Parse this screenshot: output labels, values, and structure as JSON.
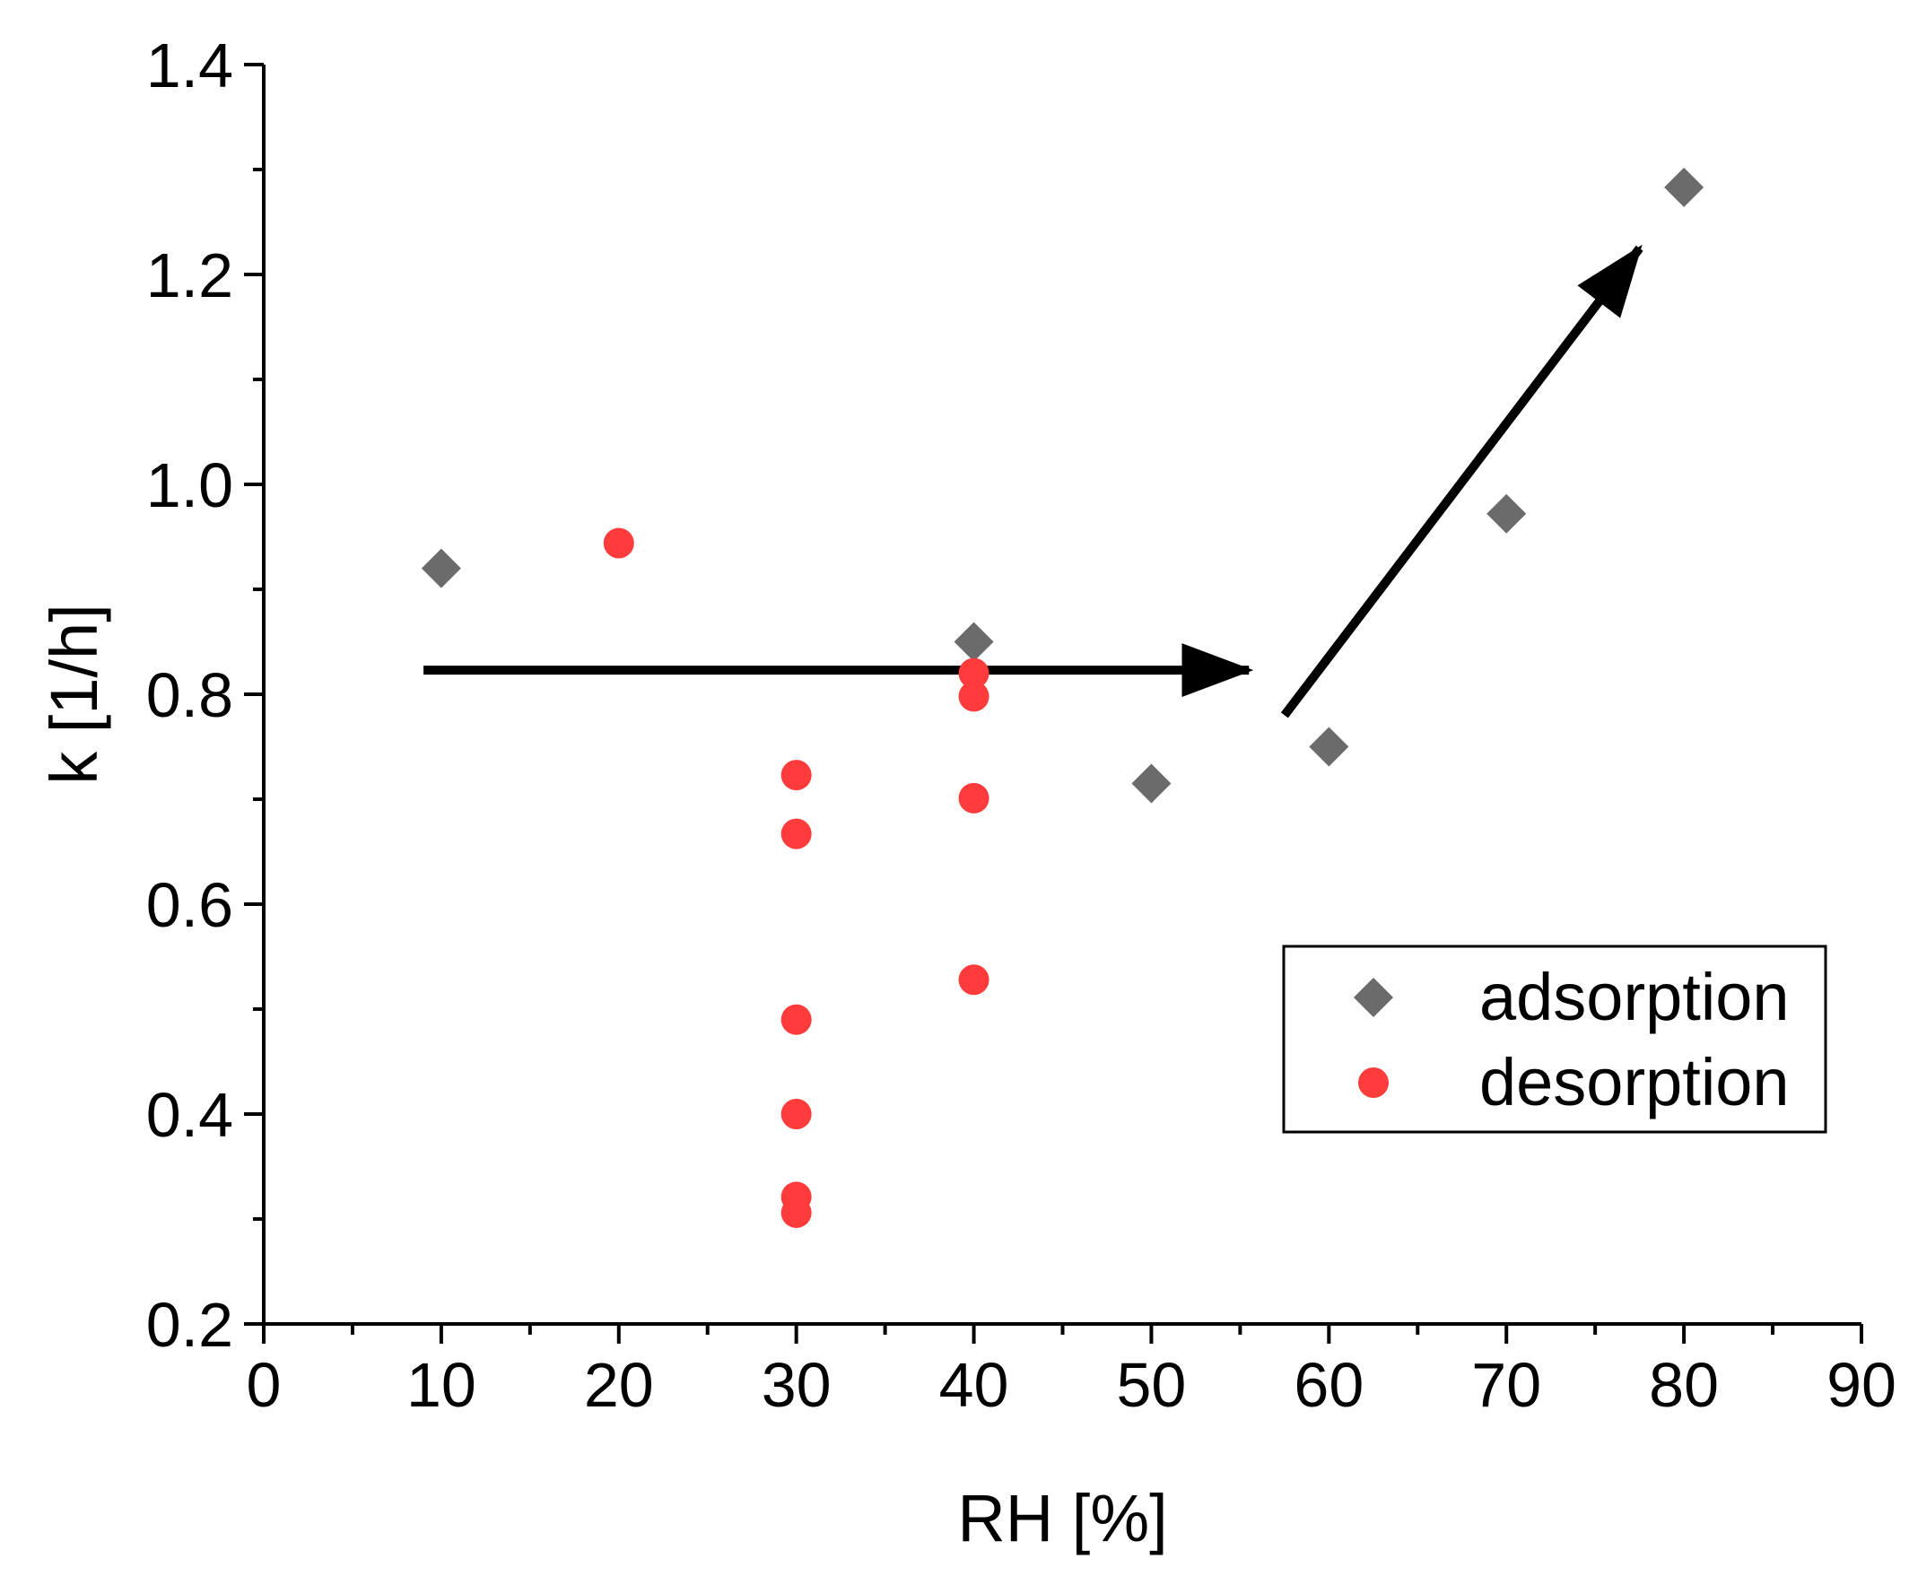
{
  "chart_data": {
    "type": "scatter",
    "title": "",
    "xlabel": "RH [%]",
    "ylabel": "k [1/h]",
    "xlim": [
      0,
      90
    ],
    "ylim": [
      0.2,
      1.4
    ],
    "xticks": [
      "0",
      "10",
      "20",
      "30",
      "40",
      "50",
      "60",
      "70",
      "80",
      "90"
    ],
    "yticks": [
      "0.2",
      "0.4",
      "0.6",
      "0.8",
      "1.0",
      "1.2",
      "1.4"
    ],
    "grid": false,
    "legend_position": "lower-right",
    "series": [
      {
        "name": "adsorption",
        "marker": "diamond",
        "color": "#6b6b6b",
        "points": [
          {
            "x": 10,
            "y": 0.92
          },
          {
            "x": 40,
            "y": 0.85
          },
          {
            "x": 50,
            "y": 0.715
          },
          {
            "x": 60,
            "y": 0.75
          },
          {
            "x": 70,
            "y": 0.972
          },
          {
            "x": 80,
            "y": 1.283
          }
        ]
      },
      {
        "name": "desorption",
        "marker": "circle",
        "color": "#ff3b3b",
        "points": [
          {
            "x": 20,
            "y": 0.944
          },
          {
            "x": 30,
            "y": 0.723
          },
          {
            "x": 30,
            "y": 0.667
          },
          {
            "x": 30,
            "y": 0.49
          },
          {
            "x": 30,
            "y": 0.4
          },
          {
            "x": 30,
            "y": 0.321
          },
          {
            "x": 30,
            "y": 0.306
          },
          {
            "x": 40,
            "y": 0.82
          },
          {
            "x": 40,
            "y": 0.798
          },
          {
            "x": 40,
            "y": 0.701
          },
          {
            "x": 40,
            "y": 0.528
          }
        ]
      }
    ],
    "annotations": [
      {
        "type": "arrow",
        "from": {
          "x": 9,
          "y": 0.823
        },
        "to": {
          "x": 55.5,
          "y": 0.823
        }
      },
      {
        "type": "arrow",
        "from": {
          "x": 57.5,
          "y": 0.78
        },
        "to": {
          "x": 77.5,
          "y": 1.225
        }
      }
    ]
  }
}
